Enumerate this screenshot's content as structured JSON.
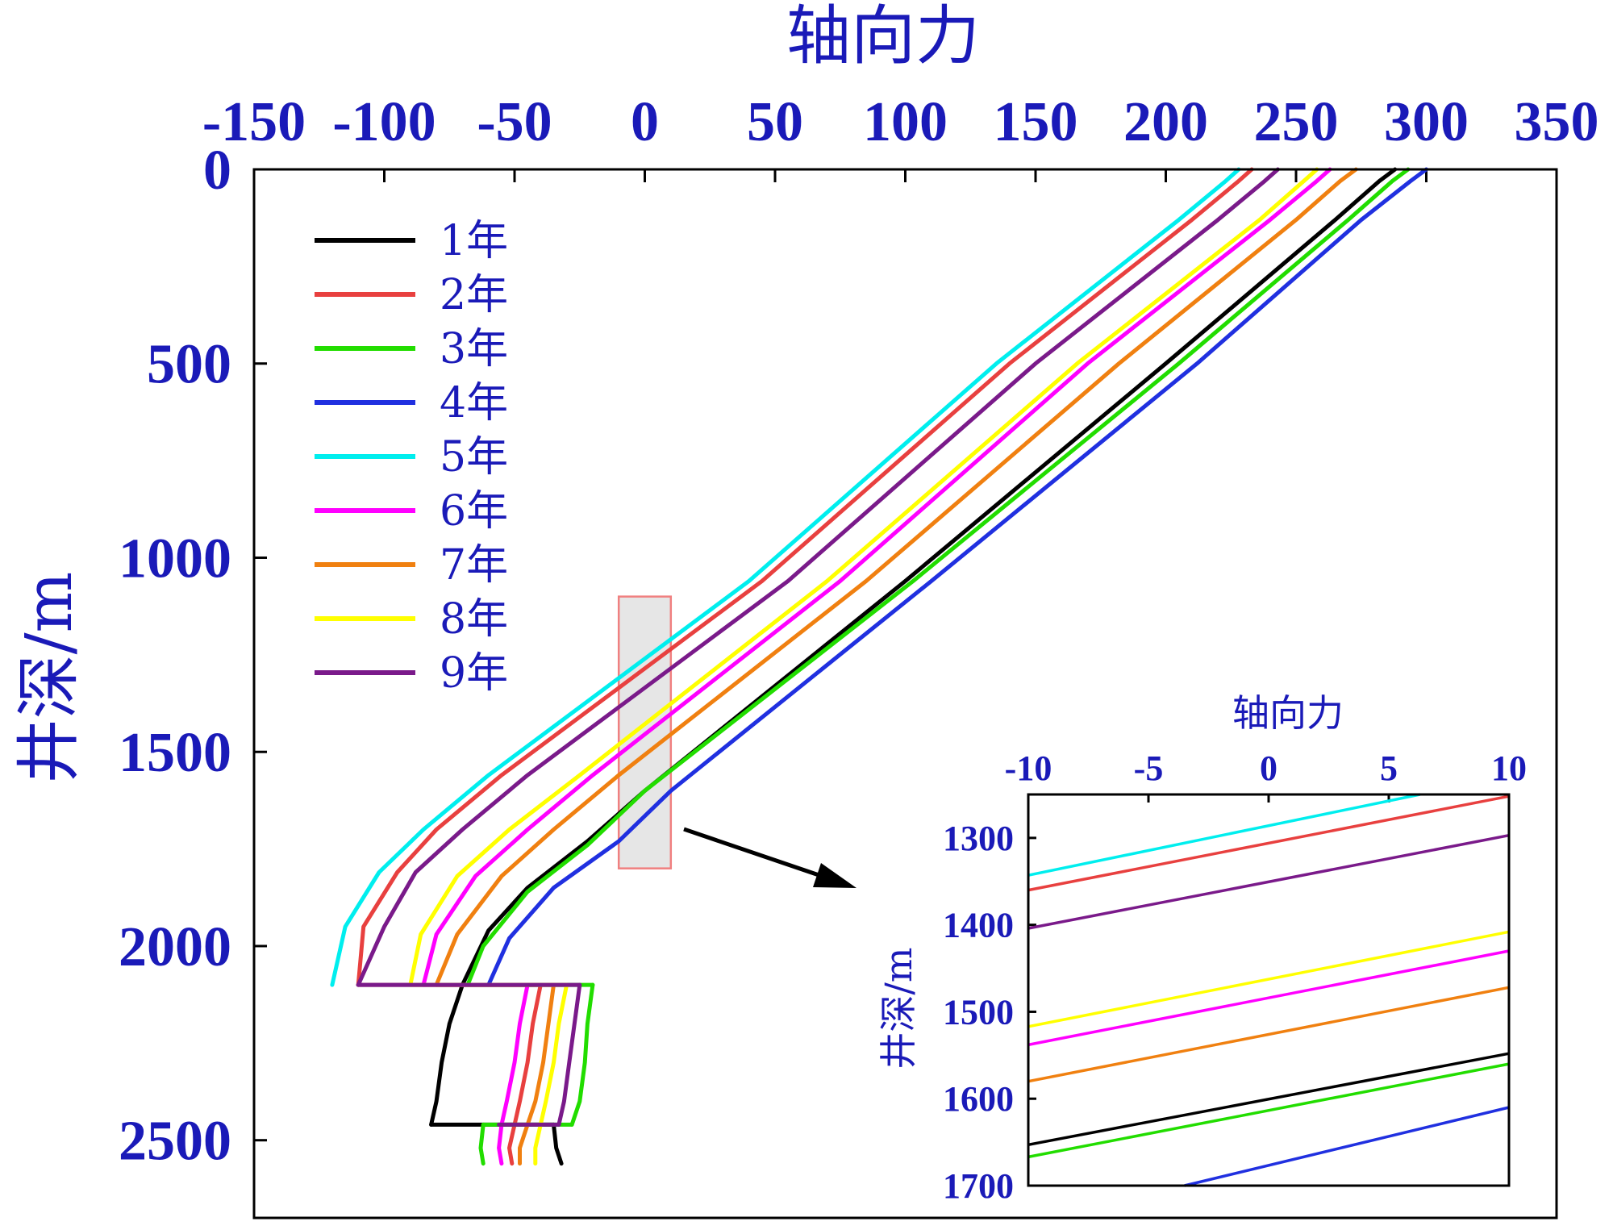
{
  "chart_data": [
    {
      "type": "line",
      "xlabel": "轴向力",
      "ylabel": "井深/m",
      "xlim": [
        -150,
        350
      ],
      "ylim": [
        0,
        2700
      ],
      "y_inverted": true,
      "x_axis_position": "top",
      "xticks": [
        -150,
        -100,
        -50,
        0,
        50,
        100,
        150,
        200,
        250,
        300,
        350
      ],
      "yticks": [
        0,
        500,
        1000,
        1500,
        2000,
        2500
      ],
      "xtick_labels": [
        "-150",
        "-100",
        "-50",
        "0",
        "50",
        "100",
        "150",
        "200",
        "250",
        "300",
        "350"
      ],
      "ytick_labels": [
        "0",
        "500",
        "1000",
        "1500",
        "2000",
        "2500"
      ],
      "legend_position": "top-left",
      "zoom_box": {
        "x": [
          -10,
          10
        ],
        "y": [
          1100,
          1800
        ],
        "color": "#f08080"
      },
      "series": [
        {
          "name": "1年",
          "color": "#000000",
          "segments": [
            [
              [
                288,
                0
              ],
              [
                282,
                30
              ],
              [
                265,
                130
              ],
              [
                200,
                500
              ],
              [
                100,
                1060
              ],
              [
                0,
                1600
              ],
              [
                -22,
                1730
              ],
              [
                -45,
                1850
              ],
              [
                -60,
                1960
              ],
              [
                -70,
                2100
              ]
            ],
            [
              [
                -70,
                2100
              ],
              [
                -75,
                2200
              ],
              [
                -78,
                2300
              ],
              [
                -80,
                2400
              ],
              [
                -82,
                2460
              ]
            ],
            [
              [
                -82,
                2460
              ],
              [
                -35,
                2460
              ]
            ],
            [
              [
                -35,
                2460
              ],
              [
                -34,
                2520
              ],
              [
                -32,
                2560
              ]
            ]
          ]
        },
        {
          "name": "2年",
          "color": "#e8403f",
          "segments": [
            [
              [
                233,
                0
              ],
              [
                228,
                30
              ],
              [
                210,
                130
              ],
              [
                140,
                500
              ],
              [
                45,
                1060
              ],
              [
                -55,
                1560
              ],
              [
                -80,
                1700
              ],
              [
                -95,
                1810
              ],
              [
                -108,
                1950
              ],
              [
                -110,
                2100
              ]
            ],
            [
              [
                -110,
                2100
              ],
              [
                -40,
                2100
              ]
            ],
            [
              [
                -40,
                2100
              ],
              [
                -43,
                2200
              ],
              [
                -45,
                2300
              ],
              [
                -48,
                2400
              ],
              [
                -50,
                2460
              ]
            ],
            [
              [
                -50,
                2460
              ],
              [
                -52,
                2520
              ],
              [
                -51,
                2560
              ]
            ]
          ]
        },
        {
          "name": "3年",
          "color": "#22dd00",
          "segments": [
            [
              [
                293,
                0
              ],
              [
                287,
                30
              ],
              [
                270,
                130
              ],
              [
                205,
                500
              ],
              [
                103,
                1060
              ],
              [
                0,
                1600
              ],
              [
                -22,
                1740
              ],
              [
                -45,
                1860
              ],
              [
                -62,
                2000
              ],
              [
                -68,
                2100
              ]
            ],
            [
              [
                -68,
                2100
              ],
              [
                -20,
                2100
              ]
            ],
            [
              [
                -20,
                2100
              ],
              [
                -22,
                2200
              ],
              [
                -23,
                2300
              ],
              [
                -25,
                2400
              ],
              [
                -28,
                2460
              ]
            ],
            [
              [
                -28,
                2460
              ],
              [
                -62,
                2460
              ]
            ],
            [
              [
                -62,
                2460
              ],
              [
                -63,
                2520
              ],
              [
                -62,
                2560
              ]
            ]
          ]
        },
        {
          "name": "4年",
          "color": "#2030e0",
          "segments": [
            [
              [
                300,
                0
              ],
              [
                294,
                30
              ],
              [
                275,
                130
              ],
              [
                212,
                500
              ],
              [
                110,
                1060
              ],
              [
                10,
                1600
              ],
              [
                -10,
                1730
              ],
              [
                -35,
                1850
              ],
              [
                -52,
                1980
              ],
              [
                -60,
                2100
              ]
            ]
          ]
        },
        {
          "name": "5年",
          "color": "#00eeee",
          "segments": [
            [
              [
                228,
                0
              ],
              [
                223,
                30
              ],
              [
                205,
                130
              ],
              [
                135,
                500
              ],
              [
                40,
                1060
              ],
              [
                -60,
                1560
              ],
              [
                -85,
                1700
              ],
              [
                -102,
                1810
              ],
              [
                -115,
                1950
              ],
              [
                -120,
                2100
              ]
            ]
          ]
        },
        {
          "name": "6年",
          "color": "#ff00ff",
          "segments": [
            [
              [
                263,
                0
              ],
              [
                258,
                30
              ],
              [
                240,
                130
              ],
              [
                170,
                500
              ],
              [
                75,
                1060
              ],
              [
                -20,
                1560
              ],
              [
                -45,
                1700
              ],
              [
                -65,
                1820
              ],
              [
                -80,
                1970
              ],
              [
                -85,
                2100
              ]
            ],
            [
              [
                -85,
                2100
              ],
              [
                -45,
                2100
              ]
            ],
            [
              [
                -45,
                2100
              ],
              [
                -48,
                2200
              ],
              [
                -50,
                2300
              ],
              [
                -53,
                2400
              ],
              [
                -55,
                2460
              ]
            ],
            [
              [
                -55,
                2460
              ],
              [
                -56,
                2520
              ],
              [
                -55,
                2560
              ]
            ]
          ]
        },
        {
          "name": "7年",
          "color": "#f08010",
          "segments": [
            [
              [
                273,
                0
              ],
              [
                267,
                30
              ],
              [
                250,
                130
              ],
              [
                182,
                500
              ],
              [
                85,
                1060
              ],
              [
                -10,
                1560
              ],
              [
                -35,
                1700
              ],
              [
                -55,
                1820
              ],
              [
                -72,
                1970
              ],
              [
                -80,
                2100
              ]
            ],
            [
              [
                -80,
                2100
              ],
              [
                -35,
                2100
              ]
            ],
            [
              [
                -35,
                2100
              ],
              [
                -37,
                2200
              ],
              [
                -39,
                2300
              ],
              [
                -42,
                2400
              ],
              [
                -45,
                2460
              ]
            ],
            [
              [
                -45,
                2460
              ],
              [
                -48,
                2520
              ],
              [
                -48,
                2560
              ]
            ]
          ]
        },
        {
          "name": "8年",
          "color": "#ffff00",
          "segments": [
            [
              [
                258,
                0
              ],
              [
                253,
                30
              ],
              [
                236,
                130
              ],
              [
                166,
                500
              ],
              [
                70,
                1060
              ],
              [
                -25,
                1560
              ],
              [
                -52,
                1700
              ],
              [
                -72,
                1820
              ],
              [
                -86,
                1970
              ],
              [
                -90,
                2100
              ]
            ],
            [
              [
                -90,
                2100
              ],
              [
                -30,
                2100
              ]
            ],
            [
              [
                -30,
                2100
              ],
              [
                -33,
                2200
              ],
              [
                -35,
                2300
              ],
              [
                -38,
                2400
              ],
              [
                -40,
                2460
              ]
            ],
            [
              [
                -40,
                2460
              ],
              [
                -42,
                2520
              ],
              [
                -42,
                2560
              ]
            ]
          ]
        },
        {
          "name": "9年",
          "color": "#7a1a8a",
          "segments": [
            [
              [
                243,
                0
              ],
              [
                238,
                30
              ],
              [
                220,
                130
              ],
              [
                150,
                500
              ],
              [
                55,
                1060
              ],
              [
                -45,
                1560
              ],
              [
                -70,
                1700
              ],
              [
                -88,
                1810
              ],
              [
                -100,
                1950
              ],
              [
                -110,
                2100
              ]
            ],
            [
              [
                -110,
                2100
              ],
              [
                -25,
                2100
              ]
            ],
            [
              [
                -25,
                2100
              ],
              [
                -27,
                2200
              ],
              [
                -29,
                2300
              ],
              [
                -31,
                2400
              ],
              [
                -33,
                2460
              ]
            ],
            [
              [
                -33,
                2460
              ],
              [
                -56,
                2460
              ]
            ]
          ]
        }
      ]
    },
    {
      "type": "line",
      "xlabel": "轴向力",
      "ylabel": "井深/m",
      "xlim": [
        -10,
        10
      ],
      "ylim": [
        1250,
        1700
      ],
      "y_inverted": true,
      "x_axis_position": "top",
      "xticks": [
        -10,
        -5,
        0,
        5,
        10
      ],
      "yticks": [
        1300,
        1400,
        1500,
        1600,
        1700
      ],
      "xtick_labels": [
        "-10",
        "-5",
        "0",
        "5",
        "10"
      ],
      "ytick_labels": [
        "1300",
        "1400",
        "1500",
        "1600",
        "1700"
      ],
      "series": [
        {
          "name": "5年",
          "color": "#00eeee",
          "points": [
            [
              -10,
              1343
            ],
            [
              6.3,
              1250
            ]
          ]
        },
        {
          "name": "2年",
          "color": "#e8403f",
          "points": [
            [
              -10,
              1360
            ],
            [
              10,
              1252
            ]
          ]
        },
        {
          "name": "9年",
          "color": "#7a1a8a",
          "points": [
            [
              -10,
              1404
            ],
            [
              10,
              1297
            ]
          ]
        },
        {
          "name": "8年",
          "color": "#ffff00",
          "points": [
            [
              -10,
              1517
            ],
            [
              10,
              1408
            ]
          ]
        },
        {
          "name": "6年",
          "color": "#ff00ff",
          "points": [
            [
              -10,
              1538
            ],
            [
              10,
              1430
            ]
          ]
        },
        {
          "name": "7年",
          "color": "#f08010",
          "points": [
            [
              -10,
              1580
            ],
            [
              10,
              1472
            ]
          ]
        },
        {
          "name": "1年",
          "color": "#000000",
          "points": [
            [
              -10,
              1653
            ],
            [
              10,
              1548
            ]
          ]
        },
        {
          "name": "3年",
          "color": "#22dd00",
          "points": [
            [
              -10,
              1667
            ],
            [
              10,
              1560
            ]
          ]
        },
        {
          "name": "4年",
          "color": "#2030e0",
          "points": [
            [
              -3.5,
              1700
            ],
            [
              10,
              1610
            ]
          ]
        }
      ]
    }
  ],
  "colors": {
    "axis_label": "#1a1ab8",
    "frame": "#000000"
  }
}
